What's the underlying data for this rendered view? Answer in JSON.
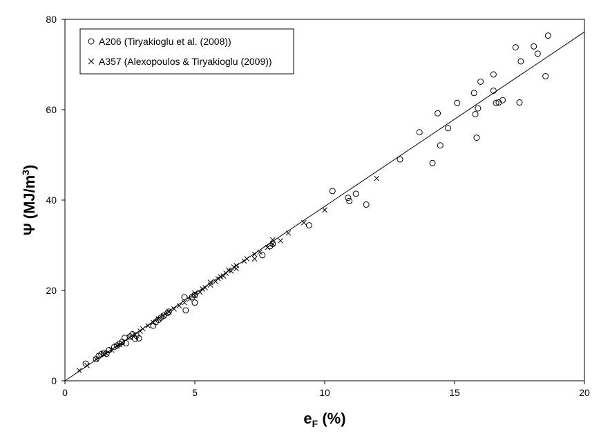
{
  "chart_data": {
    "type": "scatter",
    "xlabel_main": "e",
    "xlabel_sub": "F",
    "xlabel_unit": " (%)",
    "ylabel_main": "Ψ (MJ/m",
    "ylabel_sup": "3",
    "ylabel_end": ")",
    "xlim": [
      0,
      20
    ],
    "ylim": [
      0,
      80
    ],
    "xticks": [
      0,
      5,
      10,
      15,
      20
    ],
    "yticks": [
      0,
      20,
      40,
      60,
      80
    ],
    "grid": false,
    "legend_position": "top-left",
    "series": [
      {
        "name": "A206 (Tiryakioglu et al. (2008))",
        "marker": "circle",
        "points": [
          [
            0.8,
            3.8
          ],
          [
            1.2,
            4.8
          ],
          [
            1.3,
            5.5
          ],
          [
            1.4,
            5.9
          ],
          [
            1.5,
            6.2
          ],
          [
            1.6,
            6.0
          ],
          [
            1.7,
            6.8
          ],
          [
            1.9,
            7.5
          ],
          [
            2.0,
            7.8
          ],
          [
            2.1,
            8.2
          ],
          [
            2.2,
            8.6
          ],
          [
            2.3,
            9.5
          ],
          [
            2.35,
            8.3
          ],
          [
            2.5,
            9.8
          ],
          [
            2.6,
            10.3
          ],
          [
            2.7,
            9.3
          ],
          [
            2.75,
            10.0
          ],
          [
            2.85,
            9.4
          ],
          [
            3.4,
            12.2
          ],
          [
            3.5,
            13.0
          ],
          [
            3.6,
            13.5
          ],
          [
            3.7,
            14.0
          ],
          [
            3.8,
            14.4
          ],
          [
            3.95,
            15.0
          ],
          [
            4.0,
            15.3
          ],
          [
            4.6,
            18.5
          ],
          [
            4.65,
            15.6
          ],
          [
            4.9,
            18.6
          ],
          [
            5.0,
            17.3
          ],
          [
            5.0,
            19.0
          ],
          [
            7.6,
            27.8
          ],
          [
            7.9,
            29.8
          ],
          [
            8.0,
            30.3
          ],
          [
            9.4,
            34.4
          ],
          [
            10.3,
            42.0
          ],
          [
            10.9,
            40.5
          ],
          [
            10.95,
            39.8
          ],
          [
            11.2,
            41.4
          ],
          [
            11.6,
            39.0
          ],
          [
            12.9,
            49.0
          ],
          [
            13.65,
            55.0
          ],
          [
            14.15,
            48.2
          ],
          [
            14.35,
            59.2
          ],
          [
            14.45,
            52.1
          ],
          [
            14.75,
            55.9
          ],
          [
            15.1,
            61.5
          ],
          [
            15.75,
            63.7
          ],
          [
            15.8,
            59.0
          ],
          [
            15.85,
            53.8
          ],
          [
            15.9,
            60.3
          ],
          [
            16.0,
            66.2
          ],
          [
            16.5,
            64.2
          ],
          [
            16.5,
            67.8
          ],
          [
            16.6,
            61.5
          ],
          [
            16.7,
            61.6
          ],
          [
            16.85,
            62.1
          ],
          [
            17.35,
            73.8
          ],
          [
            17.5,
            61.6
          ],
          [
            17.55,
            70.7
          ],
          [
            18.05,
            74.0
          ],
          [
            18.2,
            72.4
          ],
          [
            18.5,
            67.4
          ],
          [
            18.6,
            76.4
          ]
        ]
      },
      {
        "name": "A357 (Alexopoulos & Tiryakioglu (2009))",
        "marker": "x",
        "points": [
          [
            0.55,
            2.3
          ],
          [
            0.85,
            3.4
          ],
          [
            1.2,
            4.8
          ],
          [
            1.5,
            5.8
          ],
          [
            1.6,
            6.0
          ],
          [
            1.8,
            6.8
          ],
          [
            2.0,
            7.7
          ],
          [
            2.1,
            8.0
          ],
          [
            2.2,
            8.4
          ],
          [
            2.5,
            9.6
          ],
          [
            2.7,
            10.2
          ],
          [
            2.9,
            11.0
          ],
          [
            3.0,
            11.5
          ],
          [
            3.2,
            12.2
          ],
          [
            3.4,
            12.9
          ],
          [
            3.6,
            13.7
          ],
          [
            3.8,
            14.4
          ],
          [
            4.0,
            15.2
          ],
          [
            4.2,
            15.9
          ],
          [
            4.4,
            16.6
          ],
          [
            4.6,
            17.3
          ],
          [
            4.8,
            18.1
          ],
          [
            5.0,
            18.9
          ],
          [
            5.0,
            19.4
          ],
          [
            5.2,
            19.6
          ],
          [
            5.3,
            20.3
          ],
          [
            5.4,
            20.6
          ],
          [
            5.6,
            21.2
          ],
          [
            5.6,
            21.8
          ],
          [
            5.8,
            22.0
          ],
          [
            5.9,
            22.6
          ],
          [
            6.0,
            23.0
          ],
          [
            6.1,
            23.2
          ],
          [
            6.2,
            23.8
          ],
          [
            6.3,
            24.5
          ],
          [
            6.4,
            24.3
          ],
          [
            6.5,
            25.2
          ],
          [
            6.6,
            24.8
          ],
          [
            6.6,
            25.5
          ],
          [
            6.9,
            26.5
          ],
          [
            7.0,
            27.0
          ],
          [
            7.3,
            27.0
          ],
          [
            7.3,
            28.0
          ],
          [
            7.5,
            28.5
          ],
          [
            7.8,
            29.5
          ],
          [
            8.0,
            30.3
          ],
          [
            8.0,
            31.2
          ],
          [
            8.3,
            31.0
          ],
          [
            8.6,
            32.7
          ],
          [
            9.2,
            35.0
          ],
          [
            10.0,
            37.8
          ],
          [
            12.0,
            44.8
          ]
        ]
      }
    ],
    "fit_line": {
      "x": [
        0,
        20
      ],
      "y": [
        0,
        77.2
      ]
    }
  }
}
